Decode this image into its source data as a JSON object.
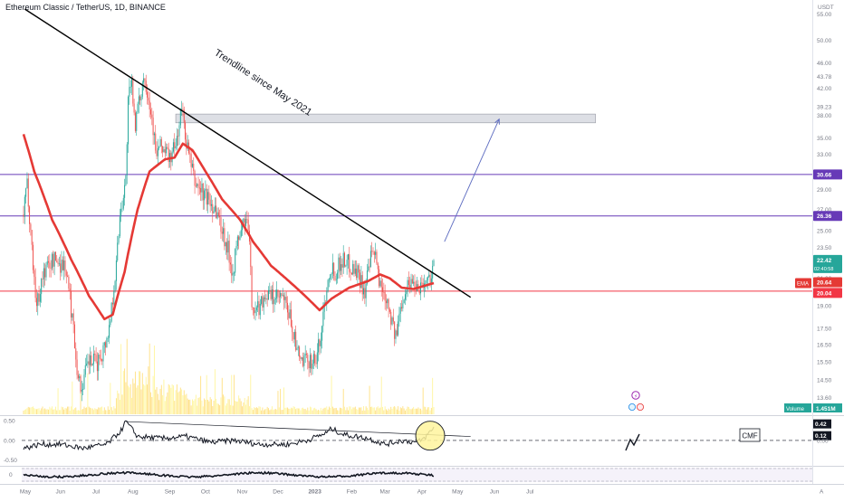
{
  "header": {
    "title": "Ethereum Classic / TetherUS, 1D, BINANCE",
    "currency": "USDT"
  },
  "colors": {
    "up": "#26a69a",
    "down": "#ef5350",
    "ema": "#e53935",
    "trendline": "#000000",
    "resistance_line": "#673ab7",
    "support_line": "#f23645",
    "volume_up": "#fff59d",
    "volume_down": "#ffe082",
    "label_green": "#26a69a",
    "label_dark": "#131722",
    "label_purple": "#673ab7",
    "label_red": "#f23645",
    "arrow": "#5c6bc0"
  },
  "annotations": {
    "trendline_text": "Trendline since May 2021",
    "cmf_label": "CMF"
  },
  "chart_data": [
    {
      "type": "candlestick",
      "y_scale": "log",
      "ylim": [
        12.8,
        56
      ],
      "y_ticks": [
        55.0,
        50.0,
        46.0,
        43.78,
        42.0,
        39.23,
        38.0,
        35.0,
        33.0,
        31.0,
        29.0,
        27.0,
        25.0,
        23.5,
        21.0,
        19.0,
        17.5,
        16.5,
        15.5,
        14.5,
        13.6
      ],
      "y_tick_labels": [
        "55.00",
        "50.00",
        "46.00",
        "43.78",
        "42.00",
        "39.23",
        "38.00",
        "35.00",
        "33.00",
        "31.00",
        "29.00",
        "27.00",
        "25.00",
        "23.50",
        "21.00",
        "19.00",
        "17.50",
        "16.50",
        "15.50",
        "14.50",
        "13.60"
      ],
      "x_labels": [
        "May",
        "Jun",
        "Jul",
        "Aug",
        "Sep",
        "Oct",
        "Nov",
        "Dec",
        "2023",
        "Feb",
        "Mar",
        "Apr",
        "May",
        "Jun",
        "Jul",
        "A"
      ],
      "close_keypoints": [
        [
          "2022-05-01",
          26.5
        ],
        [
          "2022-05-04",
          29.5
        ],
        [
          "2022-05-09",
          22.0
        ],
        [
          "2022-05-12",
          19.0
        ],
        [
          "2022-05-18",
          21.5
        ],
        [
          "2022-05-26",
          22.5
        ],
        [
          "2022-06-05",
          22.0
        ],
        [
          "2022-06-11",
          18.2
        ],
        [
          "2022-06-15",
          15.2
        ],
        [
          "2022-06-18",
          14.0
        ],
        [
          "2022-06-25",
          15.5
        ],
        [
          "2022-07-02",
          15.4
        ],
        [
          "2022-07-08",
          16.4
        ],
        [
          "2022-07-12",
          17.5
        ],
        [
          "2022-07-18",
          22.0
        ],
        [
          "2022-07-21",
          26.5
        ],
        [
          "2022-07-26",
          30.0
        ],
        [
          "2022-07-28",
          40.0
        ],
        [
          "2022-07-31",
          42.5
        ],
        [
          "2022-08-03",
          37.0
        ],
        [
          "2022-08-06",
          39.5
        ],
        [
          "2022-08-10",
          44.0
        ],
        [
          "2022-08-13",
          42.0
        ],
        [
          "2022-08-18",
          36.5
        ],
        [
          "2022-08-20",
          33.0
        ],
        [
          "2022-08-25",
          34.0
        ],
        [
          "2022-09-01",
          32.5
        ],
        [
          "2022-09-06",
          34.0
        ],
        [
          "2022-09-11",
          39.0
        ],
        [
          "2022-09-15",
          34.5
        ],
        [
          "2022-09-19",
          31.5
        ],
        [
          "2022-09-22",
          29.8
        ],
        [
          "2022-09-30",
          28.5
        ],
        [
          "2022-10-10",
          27.0
        ],
        [
          "2022-10-14",
          25.5
        ],
        [
          "2022-10-20",
          23.3
        ],
        [
          "2022-10-24",
          21.5
        ],
        [
          "2022-10-28",
          24.0
        ],
        [
          "2022-11-03",
          26.0
        ],
        [
          "2022-11-06",
          25.2
        ],
        [
          "2022-11-09",
          19.5
        ],
        [
          "2022-11-12",
          18.5
        ],
        [
          "2022-11-20",
          19.8
        ],
        [
          "2022-11-28",
          19.5
        ],
        [
          "2022-12-05",
          19.5
        ],
        [
          "2022-12-12",
          18.0
        ],
        [
          "2022-12-17",
          16.0
        ],
        [
          "2022-12-22",
          15.4
        ],
        [
          "2022-12-27",
          15.6
        ],
        [
          "2023-01-02",
          15.6
        ],
        [
          "2023-01-06",
          17.0
        ],
        [
          "2023-01-10",
          19.8
        ],
        [
          "2023-01-14",
          22.0
        ],
        [
          "2023-01-18",
          21.5
        ],
        [
          "2023-01-24",
          22.5
        ],
        [
          "2023-01-29",
          22.2
        ],
        [
          "2023-02-06",
          21.5
        ],
        [
          "2023-02-12",
          20.0
        ],
        [
          "2023-02-17",
          22.5
        ],
        [
          "2023-02-20",
          23.0
        ],
        [
          "2023-02-25",
          20.5
        ],
        [
          "2023-03-03",
          19.5
        ],
        [
          "2023-03-10",
          16.8
        ],
        [
          "2023-03-13",
          18.3
        ],
        [
          "2023-03-16",
          19.8
        ],
        [
          "2023-03-22",
          20.8
        ],
        [
          "2023-03-28",
          20.5
        ],
        [
          "2023-04-02",
          20.6
        ],
        [
          "2023-04-06",
          20.8
        ],
        [
          "2023-04-09",
          21.4
        ],
        [
          "2023-04-11",
          22.42
        ]
      ],
      "ema_keypoints": [
        [
          "2022-05-01",
          35.5
        ],
        [
          "2022-05-10",
          31.0
        ],
        [
          "2022-05-25",
          26.0
        ],
        [
          "2022-06-10",
          22.5
        ],
        [
          "2022-06-25",
          19.7
        ],
        [
          "2022-07-08",
          18.1
        ],
        [
          "2022-07-15",
          18.4
        ],
        [
          "2022-07-25",
          21.5
        ],
        [
          "2022-08-05",
          27.0
        ],
        [
          "2022-08-15",
          31.0
        ],
        [
          "2022-08-28",
          32.4
        ],
        [
          "2022-09-05",
          32.6
        ],
        [
          "2022-09-12",
          34.3
        ],
        [
          "2022-09-20",
          33.5
        ],
        [
          "2022-10-01",
          31.0
        ],
        [
          "2022-10-15",
          28.0
        ],
        [
          "2022-10-30",
          26.0
        ],
        [
          "2022-11-10",
          24.0
        ],
        [
          "2022-11-25",
          22.0
        ],
        [
          "2022-12-10",
          20.8
        ],
        [
          "2022-12-25",
          19.6
        ],
        [
          "2023-01-05",
          18.7
        ],
        [
          "2023-01-15",
          19.5
        ],
        [
          "2023-01-30",
          20.3
        ],
        [
          "2023-02-15",
          20.8
        ],
        [
          "2023-02-25",
          21.3
        ],
        [
          "2023-03-05",
          21.0
        ],
        [
          "2023-03-15",
          20.3
        ],
        [
          "2023-03-25",
          20.2
        ],
        [
          "2023-04-11",
          20.64
        ]
      ],
      "trendline": {
        "start": [
          "2022-05-02",
          56.0
        ],
        "end": [
          "2023-05-12",
          19.6
        ]
      },
      "horizontal_lines": [
        {
          "name": "resistance",
          "value": 30.66,
          "label": "30.66"
        },
        {
          "name": "level",
          "value": 26.36,
          "label": "26.36"
        },
        {
          "name": "support",
          "value": 20.04,
          "label": "20.04"
        }
      ],
      "resistance_zone": {
        "from": "2022-09-06",
        "to": "2023-08-25",
        "low": 37.0,
        "high": 38.2
      },
      "projection_arrow": {
        "start": [
          "2023-04-20",
          24.0
        ],
        "end": [
          "2023-06-05",
          37.5
        ]
      },
      "price_labels": [
        {
          "name": "last-price",
          "value": 22.42,
          "label": "22.42",
          "sub_label": "02:40:58"
        },
        {
          "name": "ema",
          "value": 20.64,
          "label": "20.64",
          "tag": "EMA"
        },
        {
          "name": "support",
          "value": 20.04,
          "label": "20.04"
        }
      ],
      "volume_label": {
        "tag": "Volume",
        "value": "1.451M"
      }
    },
    {
      "type": "line",
      "indicator": "CMF",
      "ylim": [
        -0.6,
        0.55
      ],
      "y_tick_labels": [
        "0.50",
        "0.00",
        "-0.50"
      ],
      "keypoints": [
        [
          "2022-05-01",
          -0.2
        ],
        [
          "2022-05-15",
          -0.1
        ],
        [
          "2022-06-01",
          -0.1
        ],
        [
          "2022-06-20",
          -0.2
        ],
        [
          "2022-07-10",
          -0.1
        ],
        [
          "2022-07-22",
          0.25
        ],
        [
          "2022-07-26",
          0.48
        ],
        [
          "2022-08-05",
          0.1
        ],
        [
          "2022-08-25",
          0.05
        ],
        [
          "2022-09-15",
          0.1
        ],
        [
          "2022-10-05",
          -0.05
        ],
        [
          "2022-10-25",
          0.0
        ],
        [
          "2022-11-15",
          -0.1
        ],
        [
          "2022-12-10",
          -0.1
        ],
        [
          "2022-12-25",
          0.0
        ],
        [
          "2023-01-10",
          0.18
        ],
        [
          "2023-01-15",
          0.3
        ],
        [
          "2023-01-25",
          0.15
        ],
        [
          "2023-02-15",
          0.05
        ],
        [
          "2023-03-01",
          -0.1
        ],
        [
          "2023-03-15",
          0.0
        ],
        [
          "2023-03-28",
          -0.05
        ],
        [
          "2023-04-03",
          0.05
        ],
        [
          "2023-04-11",
          0.32
        ]
      ],
      "trendline": {
        "start": [
          "2022-07-26",
          0.48
        ],
        "end": [
          "2023-05-12",
          0.1
        ]
      },
      "zero_line": 0.0,
      "labels": [
        {
          "value": 0.42,
          "label": "0.42"
        },
        {
          "value": 0.12,
          "label": "0.12"
        }
      ],
      "highlight": {
        "center": [
          "2023-04-08",
          0.12
        ],
        "note": "yellow circle"
      }
    },
    {
      "type": "line",
      "indicator": "oscillator",
      "y_tick_labels": [
        "0"
      ],
      "band": [
        -1,
        1
      ]
    }
  ]
}
